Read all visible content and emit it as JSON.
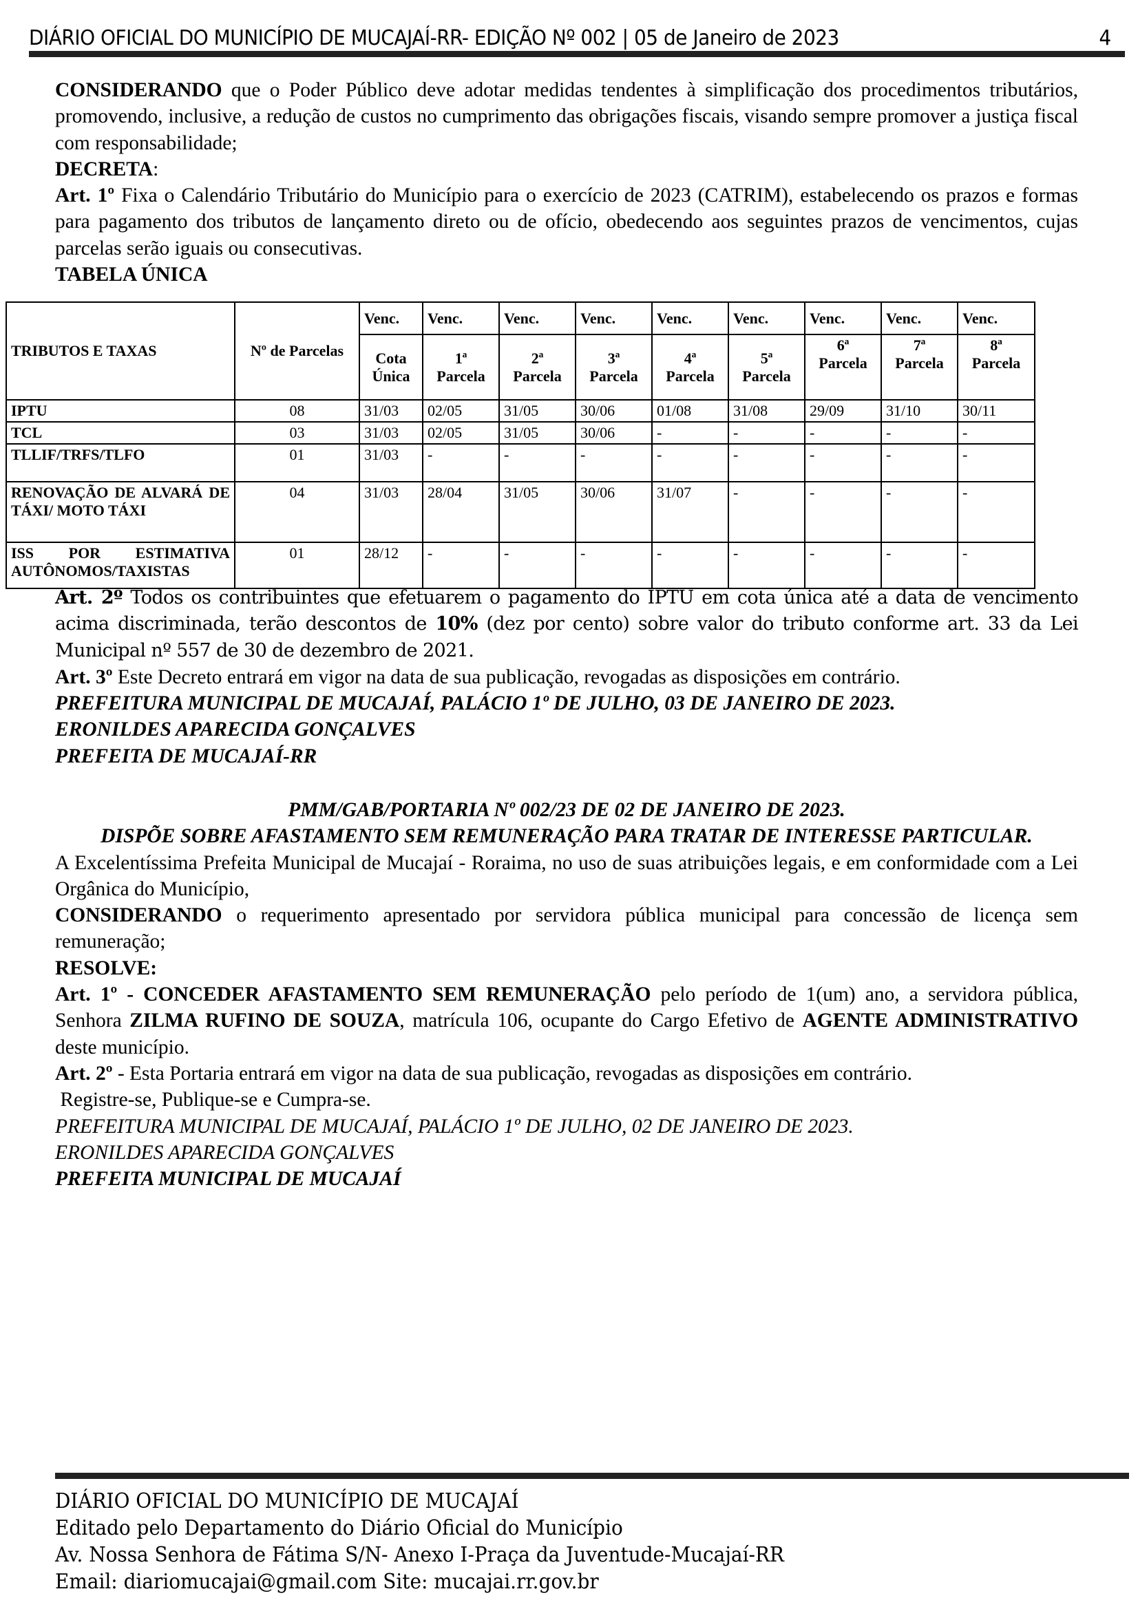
{
  "header": {
    "title": "DIÁRIO OFICIAL DO MUNICÍPIO DE MUCAJAÍ-RR- EDIÇÃO Nº 002 | 05 de Janeiro de 2023",
    "page": "4"
  },
  "decree": {
    "p1_bold": "CONSIDERANDO",
    "p1": " que o Poder Público deve adotar medidas tendentes à simplificação dos procedimentos tributários, promovendo, inclusive, a redução de custos no cumprimento das obrigações fiscais, visando sempre promover a justiça fiscal com responsabilidade;",
    "decreta": "DECRETA",
    "art1_bold": "Art. 1º",
    "art1": " Fixa o Calendário Tributário do Município para o exercício de 2023 (CATRIM), estabelecendo os prazos e formas para pagamento dos tributos de lançamento direto ou de ofício, obedecendo aos seguintes prazos de vencimentos, cujas parcelas serão iguais ou consecutivas.",
    "table_title": "TABELA ÚNICA",
    "art2_bold": "Art. 2º",
    "art2a": " Todos os contribuintes que efetuarem o pagamento do IPTU em cota única até a data de vencimento acima discriminada, terão descontos de ",
    "art2_pct": "10%",
    "art2b": " (dez por cento) sobre valor do tributo conforme art. 33 da Lei Municipal nº 557 de 30 de dezembro de 2021.",
    "art3_bold": "Art. 3º",
    "art3": " Este Decreto entrará em vigor na data de sua publicação, revogadas as disposições em contrário.",
    "sign1": "PREFEITURA MUNICIPAL DE MUCAJAÍ, PALÁCIO 1º DE JULHO, 03 DE JANEIRO DE 2023.",
    "sign2": "ERONILDES APARECIDA GONÇALVES",
    "sign3": "PREFEITA DE MUCAJAÍ-RR"
  },
  "table": {
    "col_tributos": "TRIBUTOS E TAXAS",
    "col_parcelas": "Nº de Parcelas",
    "venc": "Venc.",
    "subheaders": [
      "Cota Única",
      "1ª Parcela",
      "2ª Parcela",
      "3ª Parcela",
      "4ª Parcela",
      "5ª Parcela",
      "6ª Parcela",
      "7ª Parcela",
      "8ª Parcela"
    ],
    "rows": [
      {
        "name": "IPTU",
        "n": "08",
        "dates": [
          "31/03",
          "02/05",
          "31/05",
          "30/06",
          "01/08",
          "31/08",
          "29/09",
          "31/10",
          "30/11"
        ]
      },
      {
        "name": "TCL",
        "n": "03",
        "dates": [
          "31/03",
          "02/05",
          "31/05",
          "30/06",
          "-",
          "-",
          "-",
          "-",
          "-"
        ]
      },
      {
        "name": "TLLIF/TRFS/TLFO",
        "n": "01",
        "dates": [
          "31/03",
          "-",
          "-",
          "-",
          "-",
          "-",
          "-",
          "-",
          "-"
        ]
      },
      {
        "name": "RENOVAÇÃO DE ALVARÁ DE TÁXI/ MOTO TÁXI",
        "n": "04",
        "dates": [
          "31/03",
          "28/04",
          "31/05",
          "30/06",
          "31/07",
          "-",
          "-",
          "-",
          "-"
        ]
      },
      {
        "name": "ISS POR ESTIMATIVA AUTÔNOMOS/TAXISTAS",
        "n": "01",
        "dates": [
          "28/12",
          "-",
          "-",
          "-",
          "-",
          "-",
          "-",
          "-",
          "-"
        ]
      }
    ]
  },
  "portaria": {
    "title1": "PMM/GAB/PORTARIA Nº 002/23 DE 02 DE JANEIRO DE 2023.",
    "title2": "DISPÕE SOBRE AFASTAMENTO SEM REMUNERAÇÃO PARA TRATAR DE INTERESSE PARTICULAR.",
    "intro": "A Excelentíssima Prefeita Municipal de Mucajaí - Roraima, no uso de suas atribuições legais, e em conformidade com a Lei Orgânica do Município,",
    "cons_bold": "CONSIDERANDO",
    "cons": " o requerimento apresentado por servidora pública municipal para concessão de licença sem remuneração;",
    "resolve": "RESOLVE:",
    "art1_bold": "Art. 1º - CONCEDER AFASTAMENTO SEM REMUNERAÇÃO",
    "art1a": " pelo período de 1(um) ano, a servidora pública, Senhora ",
    "art1_name": "ZILMA RUFINO DE SOUZA",
    "art1b": ", matrícula 106, ocupante do Cargo Efetivo de ",
    "art1_role": "AGENTE ADMINISTRATIVO",
    "art1c": " deste município.",
    "art2_bold": "Art. 2º",
    "art2": " - Esta Portaria entrará em vigor na data de sua publicação, revogadas as disposições em contrário.",
    "registre": " Registre-se, Publique-se e Cumpra-se.",
    "sign1": "PREFEITURA MUNICIPAL DE MUCAJAÍ, PALÁCIO 1º DE JULHO, 02 DE JANEIRO DE 2023.",
    "sign2": "ERONILDES APARECIDA GONÇALVES",
    "sign3": "PREFEITA MUNICIPAL DE MUCAJAÍ"
  },
  "footer": {
    "lines": [
      "DIÁRIO OFICIAL DO MUNICÍPIO DE MUCAJAÍ",
      "Editado pelo Departamento do Diário Oficial do Município",
      "Av. Nossa Senhora de Fátima S/N- Anexo I-Praça da Juventude-Mucajaí-RR",
      "Email: diariomucajai@gmail.com Site: mucajai.rr.gov.br"
    ]
  }
}
